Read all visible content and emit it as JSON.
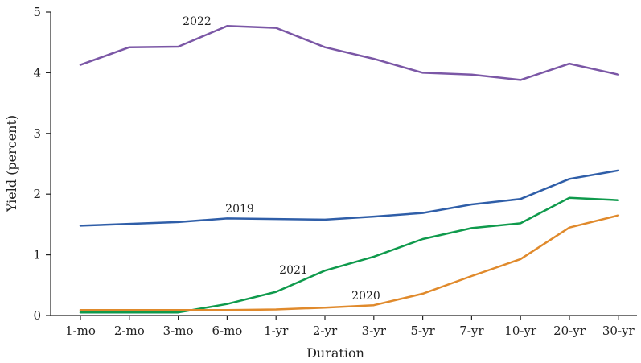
{
  "chart_data": {
    "type": "line",
    "title": "",
    "xlabel": "Duration",
    "ylabel": "Yield (percent)",
    "categories": [
      "1-mo",
      "2-mo",
      "3-mo",
      "6-mo",
      "1-yr",
      "2-yr",
      "3-yr",
      "5-yr",
      "7-yr",
      "10-yr",
      "20-yr",
      "30-yr"
    ],
    "ylim": [
      0,
      5
    ],
    "yticks": [
      "0",
      "1",
      "2",
      "3",
      "4",
      "5"
    ],
    "grid": false,
    "legend": "none (series labeled inline)",
    "series": [
      {
        "name": "2022",
        "color": "#7b57a6",
        "values": [
          4.13,
          4.42,
          4.43,
          4.77,
          4.74,
          4.42,
          4.23,
          4.0,
          3.97,
          3.88,
          4.15,
          3.97
        ]
      },
      {
        "name": "2019",
        "color": "#2f5ea8",
        "values": [
          1.48,
          1.51,
          1.54,
          1.6,
          1.59,
          1.58,
          1.63,
          1.69,
          1.83,
          1.92,
          2.25,
          2.39
        ]
      },
      {
        "name": "2021",
        "color": "#0f9a4c",
        "values": [
          0.05,
          0.05,
          0.05,
          0.19,
          0.39,
          0.74,
          0.97,
          1.26,
          1.44,
          1.52,
          1.94,
          1.9
        ]
      },
      {
        "name": "2020",
        "color": "#e08a2c",
        "values": [
          0.09,
          0.09,
          0.09,
          0.09,
          0.1,
          0.13,
          0.17,
          0.36,
          0.65,
          0.93,
          1.45,
          1.65
        ]
      }
    ]
  }
}
